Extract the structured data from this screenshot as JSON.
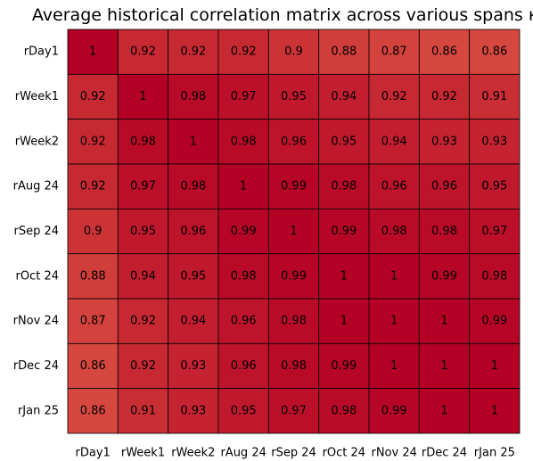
{
  "chart_data": {
    "type": "heatmap",
    "title": "Average historical correlation matrix across various spans κ",
    "xlabel": "",
    "ylabel": "",
    "grid": true,
    "legend": "none",
    "colormap": {
      "low_value": 0.86,
      "high_value": 1,
      "low_color": "#d5473f",
      "high_color": "#b40024",
      "cell_border_color": "#000000"
    },
    "row_labels": [
      "rDay1",
      "rWeek1",
      "rWeek2",
      "rAug 24",
      "rSep 24",
      "rOct 24",
      "rNov 24",
      "rDec 24",
      "rJan 25"
    ],
    "column_labels": [
      "rDay1",
      "rWeek1",
      "rWeek2",
      "rAug 24",
      "rSep 24",
      "rOct 24",
      "rNov 24",
      "rDec 24",
      "rJan 25"
    ],
    "values": [
      [
        1,
        0.92,
        0.92,
        0.92,
        0.9,
        0.88,
        0.87,
        0.86,
        0.86
      ],
      [
        0.92,
        1,
        0.98,
        0.97,
        0.95,
        0.94,
        0.92,
        0.92,
        0.91
      ],
      [
        0.92,
        0.98,
        1,
        0.98,
        0.96,
        0.95,
        0.94,
        0.93,
        0.93
      ],
      [
        0.92,
        0.97,
        0.98,
        1,
        0.99,
        0.98,
        0.96,
        0.96,
        0.95
      ],
      [
        0.9,
        0.95,
        0.96,
        0.99,
        1,
        0.99,
        0.98,
        0.98,
        0.97
      ],
      [
        0.88,
        0.94,
        0.95,
        0.98,
        0.99,
        1,
        1,
        0.99,
        0.98
      ],
      [
        0.87,
        0.92,
        0.94,
        0.96,
        0.98,
        1,
        1,
        1,
        0.99
      ],
      [
        0.86,
        0.92,
        0.93,
        0.96,
        0.98,
        0.99,
        1,
        1,
        1
      ],
      [
        0.86,
        0.91,
        0.93,
        0.95,
        0.97,
        0.98,
        0.99,
        1,
        1
      ]
    ]
  }
}
